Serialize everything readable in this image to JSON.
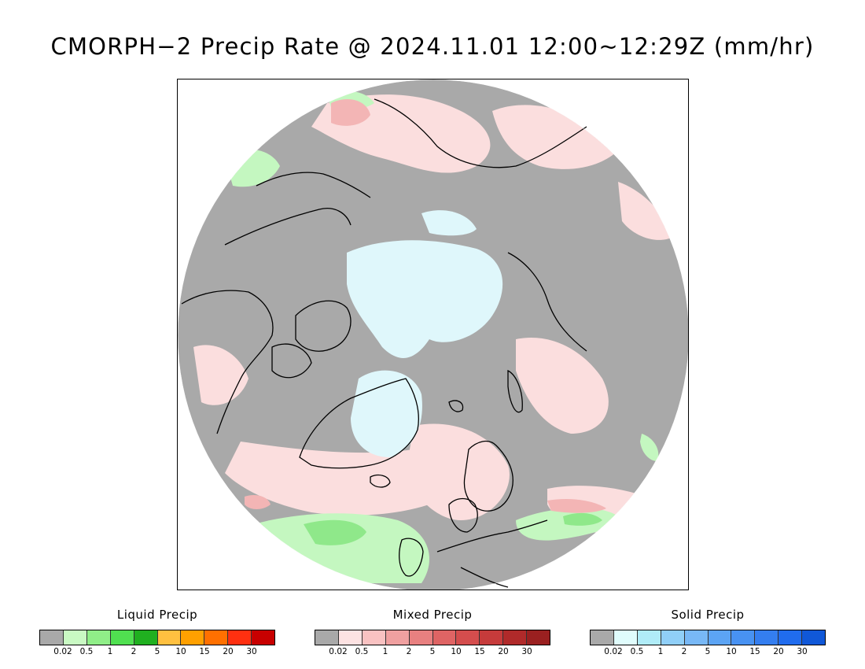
{
  "title": "CMORPH−2 Precip Rate @ 2024.11.01 12:00~12:29Z (mm/hr)",
  "map": {
    "projection": "north-polar-stereographic",
    "colors": {
      "no_precip": "#a9a9a9",
      "ocean_ice_light": "#dff7fb",
      "mixed_light": "#fbdede",
      "liquid_light": "#c4f7c0",
      "liquid_mid": "#8fe88a",
      "liquid_strong": "#4fdc4f",
      "mixed_mid": "#f3b5b5",
      "mixed_strong": "#e48b8b",
      "coastline": "#000000"
    }
  },
  "legends": [
    {
      "title": "Liquid Precip",
      "colors": [
        "#a9a9a9",
        "#c9f9c3",
        "#90ee88",
        "#50e050",
        "#20b020",
        "#ffc040",
        "#ffa000",
        "#ff7000",
        "#ff3010",
        "#c80000"
      ],
      "ticks": [
        "0.02",
        "0.5",
        "1",
        "2",
        "5",
        "10",
        "15",
        "20",
        "30"
      ]
    },
    {
      "title": "Mixed Precip",
      "colors": [
        "#a9a9a9",
        "#fde2e2",
        "#f9c2c2",
        "#f0a0a0",
        "#e88080",
        "#df6464",
        "#d44d4d",
        "#c63b3b",
        "#b02a2a",
        "#9a2020"
      ],
      "ticks": [
        "0.02",
        "0.5",
        "1",
        "2",
        "5",
        "10",
        "15",
        "20",
        "30"
      ]
    },
    {
      "title": "Solid Precip",
      "colors": [
        "#a9a9a9",
        "#e0fcfc",
        "#b0ecf8",
        "#90cff8",
        "#78b8f6",
        "#5ca4f4",
        "#4892f2",
        "#347ef0",
        "#206cee",
        "#1058d8"
      ],
      "ticks": [
        "0.02",
        "0.5",
        "1",
        "2",
        "5",
        "10",
        "15",
        "20",
        "30"
      ]
    }
  ]
}
